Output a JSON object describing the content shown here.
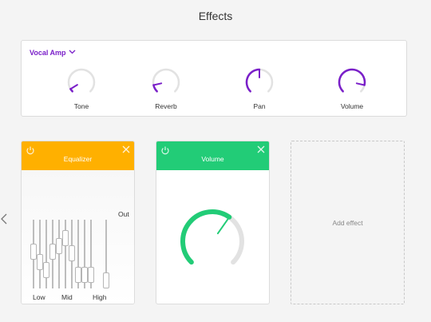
{
  "header": {
    "title": "Effects"
  },
  "amp": {
    "preset": "Vocal Amp",
    "knobs": [
      {
        "label": "Tone",
        "value": 0.05
      },
      {
        "label": "Reverb",
        "value": 0.12
      },
      {
        "label": "Pan",
        "value": 0.5
      },
      {
        "label": "Volume",
        "value": 0.88
      }
    ]
  },
  "cards": {
    "equalizer": {
      "title": "Equalizer",
      "color": "#ffb000",
      "out_label": "Out",
      "band_labels": [
        "Low",
        "Mid",
        "High"
      ],
      "sliders": [
        0.55,
        0.35,
        0.2,
        0.55,
        0.65,
        0.8,
        0.52,
        0.1,
        0.1,
        0.1,
        0.0
      ]
    },
    "volume": {
      "title": "Volume",
      "color": "#22cc77",
      "value": 0.63
    }
  },
  "add_effect": {
    "label": "Add effect"
  },
  "colors": {
    "accent": "#7a1fc9",
    "track": "#e2e2e2",
    "volume_arc": "#22cc77"
  }
}
